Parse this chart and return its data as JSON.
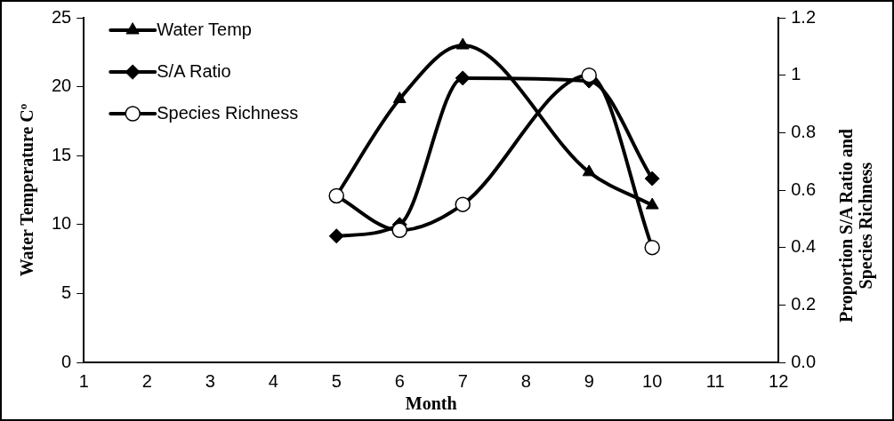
{
  "chart_data": {
    "type": "line",
    "xlabel": "Month",
    "ylabel": "Water Temperature Cº",
    "y2label": "Proportion S/A Ratio and Species Richness",
    "x": [
      5,
      6,
      7,
      9,
      10
    ],
    "series": [
      {
        "name": "Water Temp",
        "color": "#000000",
        "marker": "triangle",
        "values": [
          12.1,
          19.1,
          23,
          13.8,
          11.4
        ]
      },
      {
        "name": "S/A Ratio",
        "color": "#000000",
        "marker": "diamond",
        "axis": "y2",
        "values": [
          0.44,
          0.48,
          0.99,
          0.98,
          0.64
        ]
      },
      {
        "name": "Species Richness",
        "color": "#000000",
        "marker": "circle",
        "axis": "y2",
        "values": [
          0.58,
          0.46,
          0.55,
          1.0,
          0.4
        ]
      }
    ],
    "xlim": [
      1,
      12
    ],
    "xticks": [
      1,
      2,
      3,
      4,
      5,
      6,
      7,
      8,
      9,
      10,
      11,
      12
    ],
    "ylim": [
      0,
      25
    ],
    "yticks": [
      0,
      5,
      10,
      15,
      20,
      25
    ],
    "y2lim": [
      0,
      1.2
    ],
    "y2ticks": [
      {
        "value": 0,
        "label": "0.0"
      },
      0.2,
      0.4,
      0.6,
      0.8,
      1,
      1.2
    ],
    "grid": false,
    "legend": "top left"
  }
}
